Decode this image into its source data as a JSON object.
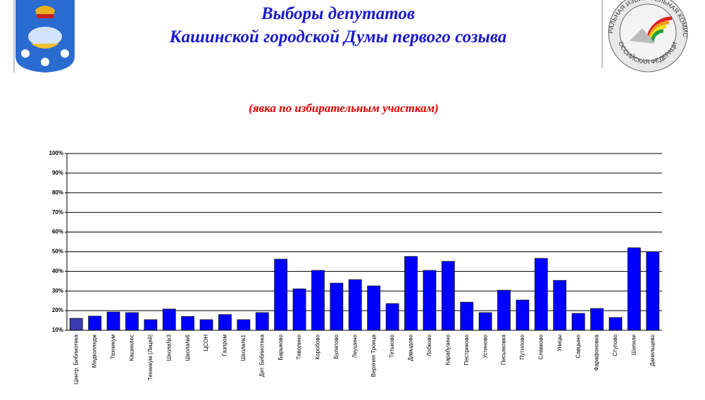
{
  "chart_data": {
    "type": "bar",
    "title": [
      "Выборы депутатов",
      "Кашинской городской Думы первого созыва"
    ],
    "subtitle": "(явка по избирательным участкам)",
    "categories": [
      "Центр. Библиотека",
      "Медколледж",
      "Техникум",
      "Кашинлес",
      "Техникум (Лицей)",
      "Школа№3",
      "Школа№6",
      "ЦСОН",
      "Газпром",
      "Школа№1",
      "Дет. Библиотека",
      "Барыково",
      "Тиволино",
      "Коробово",
      "Булатово",
      "Леушино",
      "Верхняя Троица",
      "Тетьково",
      "Давыдово",
      "Лобково",
      "Карабузино",
      "Пестриково",
      "Устиново",
      "Письяковка",
      "Путилово",
      "Славково",
      "Уницы",
      "Савцыно",
      "Фарафоновка",
      "Ступово",
      "Шепели",
      "Данильцево"
    ],
    "values": [
      16.1,
      17.2,
      19.3,
      19,
      15.4,
      20.8,
      17,
      15.4,
      18,
      15.4,
      19,
      46.2,
      31.1,
      40.5,
      34,
      35.8,
      32.6,
      23.6,
      47.6,
      40.5,
      45.1,
      24.3,
      19,
      30.4,
      25.4,
      46.6,
      35.4,
      18.6,
      21.1,
      16.5,
      52,
      50
    ],
    "colors": [
      "#3c3cb0",
      "#0000ff",
      "#0000ff",
      "#0000ff",
      "#0000ff",
      "#0000ff",
      "#0000ff",
      "#0000ff",
      "#0000ff",
      "#0000ff",
      "#0000ff",
      "#0000ff",
      "#0000ff",
      "#0000ff",
      "#0000ff",
      "#0000ff",
      "#0000ff",
      "#0000ff",
      "#0000ff",
      "#0000ff",
      "#0000ff",
      "#0000ff",
      "#0000ff",
      "#0000ff",
      "#0000ff",
      "#0000ff",
      "#0000ff",
      "#0000ff",
      "#0000ff",
      "#0000ff",
      "#0000ff",
      "#0000ff"
    ],
    "ylim": [
      10,
      100
    ],
    "yticks": [
      {
        "value": 10,
        "label": "10%"
      },
      {
        "value": 20,
        "label": "20%"
      },
      {
        "value": 30,
        "label": "30%"
      },
      {
        "value": 40,
        "label": "40%"
      },
      {
        "value": 50,
        "label": "50%"
      },
      {
        "value": 60,
        "label": "60%"
      },
      {
        "value": 70,
        "label": "70%"
      },
      {
        "value": 80,
        "label": "80%"
      },
      {
        "value": 90,
        "label": "90%"
      },
      {
        "value": 100,
        "label": "100%"
      }
    ],
    "grid": true
  },
  "logo_text": [
    "ЦЕНТРАЛЬНАЯ ИЗБИРАТЕЛЬНАЯ КОМИССИЯ",
    "РОССИЙСКАЯ ФЕДЕРАЦИЯ"
  ]
}
